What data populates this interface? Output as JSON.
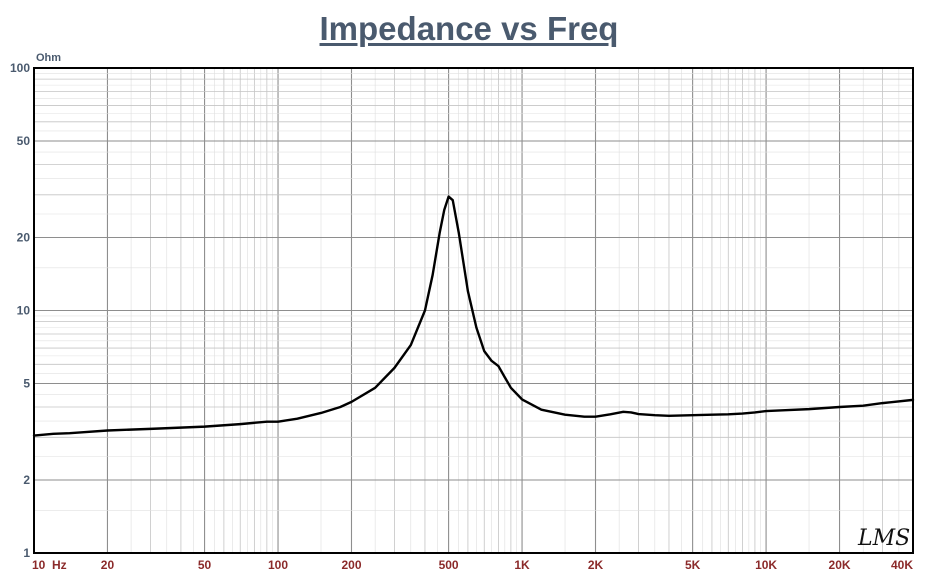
{
  "chart_data": {
    "type": "line",
    "title": "Impedance vs Freq",
    "ylabel": "Ohm",
    "xlabel": "",
    "x_scale": "log",
    "y_scale": "log",
    "xlim": [
      10,
      40000
    ],
    "ylim": [
      1,
      100
    ],
    "grid": true,
    "x_ticks": [
      {
        "value": 10,
        "label": "10  Hz"
      },
      {
        "value": 20,
        "label": "20"
      },
      {
        "value": 50,
        "label": "50"
      },
      {
        "value": 100,
        "label": "100"
      },
      {
        "value": 200,
        "label": "200"
      },
      {
        "value": 500,
        "label": "500"
      },
      {
        "value": 1000,
        "label": "1K"
      },
      {
        "value": 2000,
        "label": "2K"
      },
      {
        "value": 5000,
        "label": "5K"
      },
      {
        "value": 10000,
        "label": "10K"
      },
      {
        "value": 20000,
        "label": "20K"
      },
      {
        "value": 40000,
        "label": "40K"
      }
    ],
    "y_ticks": [
      {
        "value": 1,
        "label": "1"
      },
      {
        "value": 2,
        "label": "2"
      },
      {
        "value": 5,
        "label": "5"
      },
      {
        "value": 10,
        "label": "10"
      },
      {
        "value": 20,
        "label": "20"
      },
      {
        "value": 50,
        "label": "50"
      },
      {
        "value": 100,
        "label": "100"
      }
    ],
    "series": [
      {
        "color": "#000000",
        "x": [
          10,
          12,
          14,
          16,
          20,
          30,
          50,
          70,
          90,
          100,
          120,
          150,
          180,
          200,
          250,
          300,
          350,
          400,
          430,
          460,
          480,
          500,
          520,
          550,
          600,
          650,
          700,
          750,
          800,
          850,
          900,
          1000,
          1200,
          1500,
          1800,
          2000,
          2300,
          2600,
          2800,
          3000,
          3500,
          4000,
          5000,
          6000,
          7000,
          8000,
          9000,
          10000,
          12000,
          15000,
          20000,
          25000,
          30000,
          40000
        ],
        "y": [
          3.05,
          3.1,
          3.12,
          3.15,
          3.2,
          3.25,
          3.32,
          3.4,
          3.48,
          3.48,
          3.58,
          3.78,
          4.0,
          4.2,
          4.8,
          5.8,
          7.2,
          10.0,
          14.0,
          21.0,
          26.0,
          29.5,
          28.5,
          21.0,
          12.0,
          8.5,
          6.8,
          6.2,
          5.9,
          5.3,
          4.8,
          4.3,
          3.9,
          3.72,
          3.65,
          3.65,
          3.73,
          3.82,
          3.8,
          3.74,
          3.7,
          3.68,
          3.7,
          3.72,
          3.73,
          3.76,
          3.8,
          3.85,
          3.88,
          3.92,
          4.0,
          4.05,
          4.15,
          4.28
        ]
      }
    ]
  },
  "logo_text": "LMS"
}
